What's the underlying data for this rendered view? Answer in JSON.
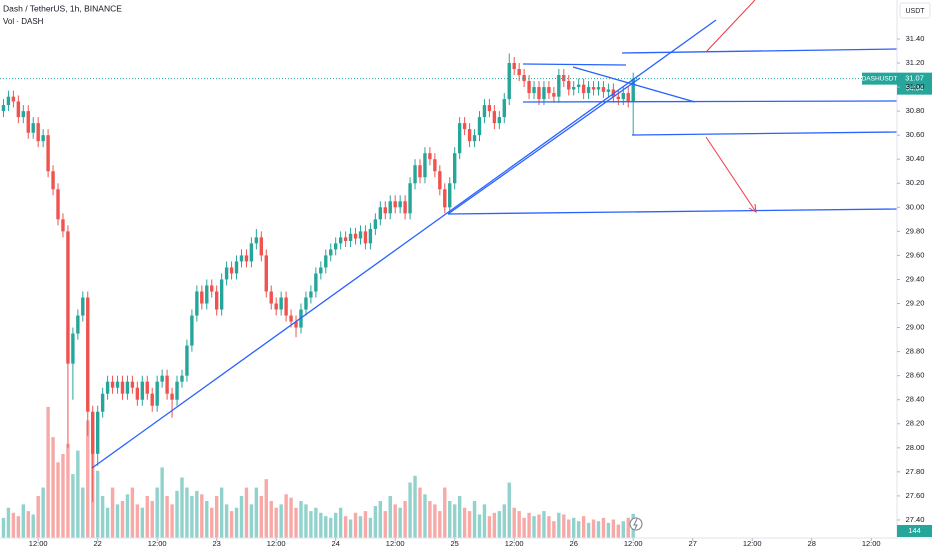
{
  "chart_data": {
    "type": "candlestick",
    "title": "Dash / TetherUS, 1h, BINANCE",
    "volume_label": "Vol · DASH",
    "currency": "USDT",
    "symbol": "DASHUSDT",
    "countdown": "54:34",
    "up_color": "#26a69a",
    "down_color": "#ef5350",
    "grid": false,
    "xlim": [
      -0.7,
      180.2
    ],
    "xticks": [
      {
        "value": 7,
        "label": "12:00"
      },
      {
        "value": 19,
        "label": "22"
      },
      {
        "value": 31,
        "label": "12:00"
      },
      {
        "value": 43,
        "label": "23"
      },
      {
        "value": 55,
        "label": "12:00"
      },
      {
        "value": 67,
        "label": "24"
      },
      {
        "value": 79,
        "label": "12:00"
      },
      {
        "value": 91,
        "label": "25"
      },
      {
        "value": 103,
        "label": "12:00"
      },
      {
        "value": 115,
        "label": "26"
      },
      {
        "value": 127,
        "label": "12:00"
      },
      {
        "value": 139,
        "label": "27"
      },
      {
        "value": 151,
        "label": "12:00"
      },
      {
        "value": 163,
        "label": "28"
      },
      {
        "value": 175,
        "label": "12:00"
      }
    ],
    "ylim": [
      27.25,
      31.724
    ],
    "yticks": [
      {
        "value": 27.4,
        "label": "27.40"
      },
      {
        "value": 27.6,
        "label": "27.60"
      },
      {
        "value": 27.8,
        "label": "27.80"
      },
      {
        "value": 28.0,
        "label": "28.00"
      },
      {
        "value": 28.2,
        "label": "28.20"
      },
      {
        "value": 28.4,
        "label": "28.40"
      },
      {
        "value": 28.6,
        "label": "28.60"
      },
      {
        "value": 28.8,
        "label": "28.80"
      },
      {
        "value": 29.0,
        "label": "29.00"
      },
      {
        "value": 29.2,
        "label": "29.20"
      },
      {
        "value": 29.4,
        "label": "29.40"
      },
      {
        "value": 29.6,
        "label": "29.60"
      },
      {
        "value": 29.8,
        "label": "29.80"
      },
      {
        "value": 30.0,
        "label": "30.00"
      },
      {
        "value": 30.2,
        "label": "30.20"
      },
      {
        "value": 30.4,
        "label": "30.40"
      },
      {
        "value": 30.6,
        "label": "30.60"
      },
      {
        "value": 30.8,
        "label": "30.80"
      },
      {
        "value": 31.0,
        "label": "31.00"
      },
      {
        "value": 31.2,
        "label": "31.20"
      },
      {
        "value": 31.4,
        "label": "31.40"
      }
    ],
    "volume_lim": [
      0,
      3200
    ],
    "open": [
      30.8,
      30.85,
      30.92,
      30.88,
      30.75,
      30.8,
      30.62,
      30.7,
      30.55,
      30.6,
      30.3,
      30.15,
      29.9,
      29.8,
      28.7,
      28.95,
      29.1,
      29.25,
      28.3,
      27.95,
      28.3,
      28.45,
      28.55,
      28.5,
      28.55,
      28.45,
      28.55,
      28.5,
      28.4,
      28.55,
      28.45,
      28.35,
      28.55,
      28.6,
      28.45,
      28.4,
      28.55,
      28.6,
      28.85,
      29.1,
      29.3,
      29.2,
      29.35,
      29.3,
      29.15,
      29.4,
      29.5,
      29.45,
      29.55,
      29.6,
      29.55,
      29.7,
      29.75,
      29.6,
      29.3,
      29.2,
      29.15,
      29.25,
      29.1,
      29.05,
      29.0,
      29.15,
      29.25,
      29.3,
      29.45,
      29.5,
      29.6,
      29.65,
      29.7,
      29.75,
      29.72,
      29.78,
      29.74,
      29.8,
      29.7,
      29.82,
      29.9,
      30.0,
      29.95,
      30.05,
      30.0,
      30.05,
      29.95,
      30.2,
      30.35,
      30.25,
      30.45,
      30.4,
      30.3,
      30.15,
      30.0,
      30.2,
      30.45,
      30.7,
      30.65,
      30.55,
      30.6,
      30.75,
      30.85,
      30.8,
      30.7,
      30.75,
      30.9,
      31.2,
      31.15,
      31.1,
      31.05,
      30.95,
      31.0,
      30.9,
      31.0,
      30.95,
      30.92,
      31.1,
      31.05,
      30.98,
      31.0,
      31.02,
      30.95,
      31.0,
      30.98,
      31.0,
      30.96,
      30.98,
      30.92,
      30.9,
      30.95,
      30.88
    ],
    "high": [
      30.9,
      30.97,
      30.97,
      30.93,
      30.85,
      30.85,
      30.75,
      30.75,
      30.65,
      30.65,
      30.35,
      30.2,
      29.95,
      29.85,
      29.0,
      29.15,
      29.3,
      29.3,
      28.35,
      28.35,
      28.5,
      28.6,
      28.6,
      28.6,
      28.6,
      28.6,
      28.6,
      28.55,
      28.6,
      28.6,
      28.5,
      28.6,
      28.65,
      28.65,
      28.5,
      28.6,
      28.65,
      28.9,
      29.15,
      29.35,
      29.35,
      29.4,
      29.4,
      29.35,
      29.45,
      29.55,
      29.55,
      29.6,
      29.65,
      29.65,
      29.75,
      29.82,
      29.8,
      29.65,
      29.35,
      29.25,
      29.3,
      29.3,
      29.15,
      29.1,
      29.2,
      29.3,
      29.35,
      29.5,
      29.55,
      29.65,
      29.7,
      29.75,
      29.8,
      29.8,
      29.83,
      29.83,
      29.85,
      29.85,
      29.87,
      29.95,
      30.05,
      30.05,
      30.1,
      30.1,
      30.1,
      30.1,
      30.25,
      30.4,
      30.4,
      30.5,
      30.5,
      30.45,
      30.35,
      30.2,
      30.25,
      30.5,
      30.75,
      30.75,
      30.7,
      30.65,
      30.8,
      30.9,
      30.9,
      30.85,
      30.8,
      30.95,
      31.28,
      31.25,
      31.2,
      31.15,
      31.1,
      31.05,
      31.05,
      31.05,
      31.05,
      31.0,
      31.15,
      31.15,
      31.1,
      31.05,
      31.07,
      31.07,
      31.05,
      31.05,
      31.05,
      31.05,
      31.03,
      31.03,
      30.97,
      31.0,
      31.0,
      31.12
    ],
    "low": [
      30.75,
      30.8,
      30.83,
      30.7,
      30.7,
      30.57,
      30.57,
      30.5,
      30.5,
      30.25,
      30.1,
      29.85,
      29.75,
      28.0,
      28.4,
      28.9,
      29.05,
      28.1,
      27.55,
      27.85,
      28.25,
      28.4,
      28.45,
      28.45,
      28.4,
      28.4,
      28.45,
      28.35,
      28.35,
      28.4,
      28.3,
      28.3,
      28.5,
      28.4,
      28.25,
      28.35,
      28.5,
      28.55,
      28.8,
      29.05,
      29.15,
      29.15,
      29.25,
      29.1,
      29.1,
      29.35,
      29.4,
      29.4,
      29.5,
      29.5,
      29.5,
      29.65,
      29.55,
      29.25,
      29.15,
      29.1,
      29.1,
      29.05,
      29.0,
      28.92,
      28.95,
      29.1,
      29.2,
      29.25,
      29.4,
      29.45,
      29.55,
      29.6,
      29.65,
      29.67,
      29.67,
      29.69,
      29.69,
      29.65,
      29.65,
      29.77,
      29.85,
      29.9,
      29.9,
      29.95,
      29.95,
      29.9,
      29.9,
      30.15,
      30.2,
      30.2,
      30.35,
      30.25,
      30.1,
      29.95,
      29.95,
      30.15,
      30.4,
      30.6,
      30.5,
      30.5,
      30.55,
      30.7,
      30.75,
      30.65,
      30.65,
      30.7,
      30.85,
      31.1,
      31.05,
      31.0,
      30.9,
      30.9,
      30.85,
      30.85,
      30.9,
      30.87,
      30.87,
      31.0,
      30.93,
      30.93,
      30.95,
      30.9,
      30.9,
      30.93,
      30.93,
      30.91,
      30.91,
      30.87,
      30.85,
      30.85,
      30.83,
      30.6
    ],
    "close": [
      30.85,
      30.92,
      30.88,
      30.75,
      30.8,
      30.62,
      30.7,
      30.55,
      30.6,
      30.3,
      30.15,
      29.9,
      29.8,
      28.7,
      28.95,
      29.1,
      29.25,
      28.3,
      27.95,
      28.3,
      28.45,
      28.55,
      28.5,
      28.55,
      28.45,
      28.55,
      28.5,
      28.4,
      28.55,
      28.45,
      28.35,
      28.55,
      28.6,
      28.45,
      28.4,
      28.55,
      28.6,
      28.85,
      29.1,
      29.3,
      29.2,
      29.35,
      29.3,
      29.15,
      29.4,
      29.5,
      29.45,
      29.55,
      29.6,
      29.55,
      29.7,
      29.75,
      29.6,
      29.3,
      29.2,
      29.15,
      29.25,
      29.1,
      29.05,
      29.0,
      29.15,
      29.25,
      29.3,
      29.45,
      29.5,
      29.6,
      29.65,
      29.7,
      29.75,
      29.72,
      29.78,
      29.74,
      29.8,
      29.7,
      29.82,
      29.9,
      30.0,
      29.95,
      30.05,
      30.0,
      30.05,
      29.95,
      30.2,
      30.35,
      30.25,
      30.45,
      30.4,
      30.3,
      30.15,
      30.0,
      30.2,
      30.45,
      30.7,
      30.65,
      30.55,
      30.6,
      30.75,
      30.85,
      30.8,
      30.7,
      30.75,
      30.9,
      31.2,
      31.15,
      31.1,
      31.05,
      30.95,
      31.0,
      30.9,
      31.0,
      30.95,
      30.92,
      31.1,
      31.05,
      30.98,
      31.0,
      31.02,
      30.95,
      31.0,
      30.98,
      31.0,
      30.96,
      30.98,
      30.92,
      30.9,
      30.95,
      30.88,
      31.07
    ],
    "volume": [
      120,
      180,
      150,
      130,
      200,
      160,
      140,
      250,
      300,
      780,
      600,
      450,
      500,
      560,
      380,
      520,
      300,
      700,
      650,
      400,
      250,
      180,
      300,
      200,
      220,
      260,
      300,
      200,
      180,
      250,
      220,
      300,
      420,
      250,
      200,
      280,
      360,
      300,
      250,
      280,
      260,
      220,
      180,
      250,
      300,
      200,
      160,
      180,
      250,
      300,
      200,
      300,
      250,
      350,
      220,
      180,
      200,
      260,
      240,
      180,
      220,
      200,
      160,
      180,
      150,
      130,
      120,
      150,
      180,
      130,
      110,
      150,
      130,
      160,
      120,
      190,
      220,
      160,
      250,
      200,
      180,
      220,
      330,
      370,
      300,
      260,
      220,
      200,
      160,
      300,
      220,
      200,
      250,
      180,
      160,
      220,
      140,
      200,
      130,
      150,
      160,
      200,
      330,
      180,
      160,
      120,
      150,
      130,
      140,
      160,
      130,
      100,
      150,
      140,
      110,
      120,
      100,
      130,
      90,
      110,
      100,
      120,
      90,
      110,
      80,
      100,
      120,
      144
    ]
  }
}
